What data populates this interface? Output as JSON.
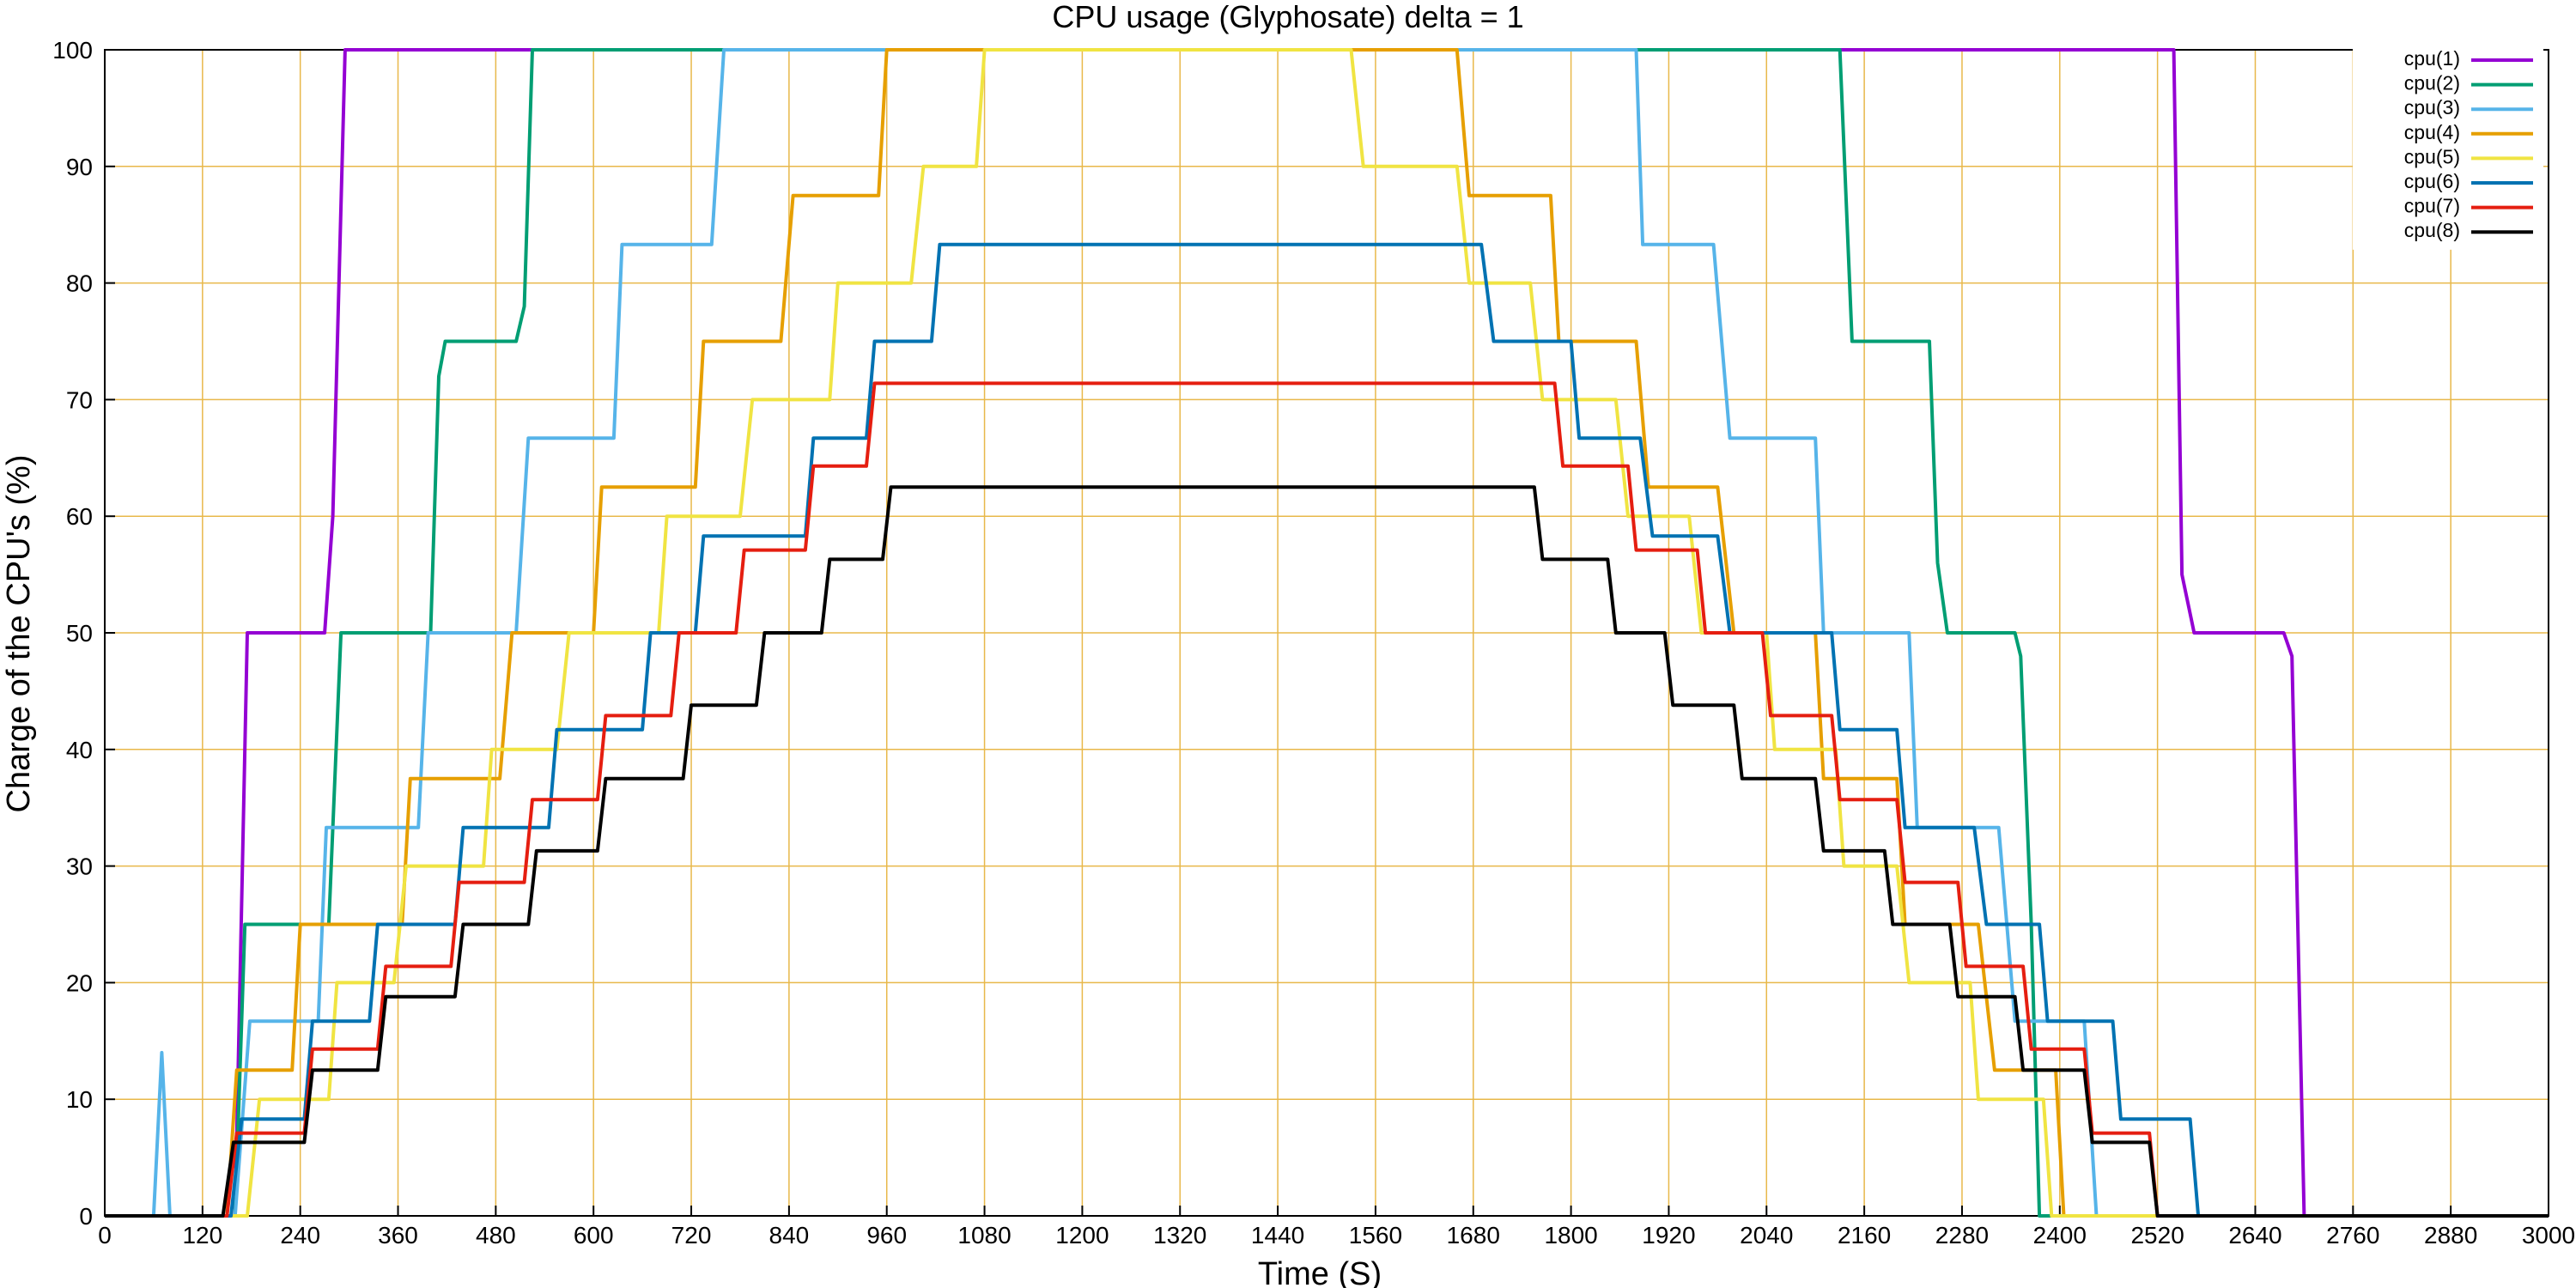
{
  "chart_data": {
    "type": "line",
    "title": "CPU usage (Glyphosate) delta = 1",
    "xlabel": "Time (S)",
    "ylabel": "Charge of the CPU's (%)",
    "xlim": [
      0,
      3000
    ],
    "ylim": [
      0,
      100
    ],
    "xticks": [
      "0",
      "120",
      "240",
      "360",
      "480",
      "600",
      "720",
      "840",
      "960",
      "1080",
      "1200",
      "1320",
      "1440",
      "1560",
      "1680",
      "1800",
      "1920",
      "2040",
      "2160",
      "2280",
      "2400",
      "2520",
      "2640",
      "2760",
      "2880",
      "3000"
    ],
    "yticks": [
      "0",
      "10",
      "20",
      "30",
      "40",
      "50",
      "60",
      "70",
      "80",
      "90",
      "100"
    ],
    "grid": true,
    "legend_position": "top-right",
    "series": [
      {
        "name": "cpu(1)",
        "color": "#9400d3",
        "points": [
          [
            0,
            0
          ],
          [
            160,
            0
          ],
          [
            175,
            50
          ],
          [
            270,
            50
          ],
          [
            280,
            60
          ],
          [
            295,
            100
          ],
          [
            2540,
            100
          ],
          [
            2550,
            55
          ],
          [
            2565,
            50
          ],
          [
            2675,
            50
          ],
          [
            2685,
            48
          ],
          [
            2700,
            0
          ],
          [
            3000,
            0
          ]
        ]
      },
      {
        "name": "cpu(2)",
        "color": "#009e73",
        "points": [
          [
            0,
            0
          ],
          [
            160,
            0
          ],
          [
            172,
            25
          ],
          [
            275,
            25
          ],
          [
            290,
            50
          ],
          [
            400,
            50
          ],
          [
            410,
            72
          ],
          [
            418,
            75
          ],
          [
            505,
            75
          ],
          [
            515,
            78
          ],
          [
            525,
            100
          ],
          [
            2130,
            100
          ],
          [
            2145,
            75
          ],
          [
            2240,
            75
          ],
          [
            2250,
            56
          ],
          [
            2262,
            50
          ],
          [
            2345,
            50
          ],
          [
            2352,
            48
          ],
          [
            2365,
            25
          ],
          [
            2375,
            0
          ],
          [
            3000,
            0
          ]
        ]
      },
      {
        "name": "cpu(3)",
        "color": "#56b4e9",
        "points": [
          [
            0,
            0
          ],
          [
            60,
            0
          ],
          [
            70,
            14
          ],
          [
            80,
            0
          ],
          [
            160,
            0
          ],
          [
            178,
            16.7
          ],
          [
            262,
            16.7
          ],
          [
            272,
            33.3
          ],
          [
            385,
            33.3
          ],
          [
            397,
            50
          ],
          [
            505,
            50
          ],
          [
            520,
            66.7
          ],
          [
            625,
            66.7
          ],
          [
            635,
            83.3
          ],
          [
            745,
            83.3
          ],
          [
            760,
            100
          ],
          [
            1880,
            100
          ],
          [
            1888,
            83.3
          ],
          [
            1975,
            83.3
          ],
          [
            1995,
            66.7
          ],
          [
            2100,
            66.7
          ],
          [
            2110,
            50
          ],
          [
            2215,
            50
          ],
          [
            2225,
            33.3
          ],
          [
            2325,
            33.3
          ],
          [
            2345,
            16.7
          ],
          [
            2430,
            16.7
          ],
          [
            2445,
            0
          ],
          [
            3000,
            0
          ]
        ]
      },
      {
        "name": "cpu(4)",
        "color": "#e69f00",
        "points": [
          [
            0,
            0
          ],
          [
            150,
            0
          ],
          [
            162,
            12.5
          ],
          [
            230,
            12.5
          ],
          [
            240,
            25
          ],
          [
            365,
            25
          ],
          [
            375,
            37.5
          ],
          [
            485,
            37.5
          ],
          [
            500,
            50
          ],
          [
            600,
            50
          ],
          [
            610,
            62.5
          ],
          [
            725,
            62.5
          ],
          [
            735,
            75
          ],
          [
            830,
            75
          ],
          [
            845,
            87.5
          ],
          [
            950,
            87.5
          ],
          [
            960,
            100
          ],
          [
            1660,
            100
          ],
          [
            1675,
            87.5
          ],
          [
            1775,
            87.5
          ],
          [
            1785,
            75
          ],
          [
            1880,
            75
          ],
          [
            1895,
            62.5
          ],
          [
            1980,
            62.5
          ],
          [
            2000,
            50
          ],
          [
            2100,
            50
          ],
          [
            2110,
            37.5
          ],
          [
            2200,
            37.5
          ],
          [
            2210,
            25
          ],
          [
            2300,
            25
          ],
          [
            2320,
            12.5
          ],
          [
            2395,
            12.5
          ],
          [
            2405,
            0
          ],
          [
            3000,
            0
          ]
        ]
      },
      {
        "name": "cpu(5)",
        "color": "#f0e442",
        "points": [
          [
            0,
            0
          ],
          [
            175,
            0
          ],
          [
            190,
            10
          ],
          [
            275,
            10
          ],
          [
            285,
            20
          ],
          [
            355,
            20
          ],
          [
            370,
            30
          ],
          [
            465,
            30
          ],
          [
            475,
            40
          ],
          [
            555,
            40
          ],
          [
            570,
            50
          ],
          [
            680,
            50
          ],
          [
            690,
            60
          ],
          [
            780,
            60
          ],
          [
            795,
            70
          ],
          [
            890,
            70
          ],
          [
            900,
            80
          ],
          [
            990,
            80
          ],
          [
            1005,
            90
          ],
          [
            1070,
            90
          ],
          [
            1080,
            100
          ],
          [
            1530,
            100
          ],
          [
            1545,
            90
          ],
          [
            1660,
            90
          ],
          [
            1675,
            80
          ],
          [
            1750,
            80
          ],
          [
            1765,
            70
          ],
          [
            1855,
            70
          ],
          [
            1870,
            60
          ],
          [
            1945,
            60
          ],
          [
            1960,
            50
          ],
          [
            2040,
            50
          ],
          [
            2050,
            40
          ],
          [
            2125,
            40
          ],
          [
            2135,
            30
          ],
          [
            2200,
            30
          ],
          [
            2215,
            20
          ],
          [
            2290,
            20
          ],
          [
            2300,
            10
          ],
          [
            2380,
            10
          ],
          [
            2390,
            0
          ],
          [
            3000,
            0
          ]
        ]
      },
      {
        "name": "cpu(6)",
        "color": "#0072b2",
        "points": [
          [
            0,
            0
          ],
          [
            155,
            0
          ],
          [
            168,
            8.3
          ],
          [
            245,
            8.3
          ],
          [
            255,
            16.7
          ],
          [
            325,
            16.7
          ],
          [
            335,
            25
          ],
          [
            430,
            25
          ],
          [
            440,
            33.3
          ],
          [
            545,
            33.3
          ],
          [
            555,
            41.7
          ],
          [
            660,
            41.7
          ],
          [
            670,
            50
          ],
          [
            725,
            50
          ],
          [
            735,
            58.3
          ],
          [
            860,
            58.3
          ],
          [
            870,
            66.7
          ],
          [
            935,
            66.7
          ],
          [
            945,
            75
          ],
          [
            1015,
            75
          ],
          [
            1025,
            83.3
          ],
          [
            1690,
            83.3
          ],
          [
            1705,
            75
          ],
          [
            1800,
            75
          ],
          [
            1810,
            66.7
          ],
          [
            1885,
            66.7
          ],
          [
            1900,
            58.3
          ],
          [
            1980,
            58.3
          ],
          [
            1995,
            50
          ],
          [
            2120,
            50
          ],
          [
            2130,
            41.7
          ],
          [
            2200,
            41.7
          ],
          [
            2210,
            33.3
          ],
          [
            2295,
            33.3
          ],
          [
            2310,
            25
          ],
          [
            2375,
            25
          ],
          [
            2385,
            16.7
          ],
          [
            2465,
            16.7
          ],
          [
            2475,
            8.3
          ],
          [
            2560,
            8.3
          ],
          [
            2570,
            0
          ],
          [
            3000,
            0
          ]
        ]
      },
      {
        "name": "cpu(7)",
        "color": "#e51e10",
        "points": [
          [
            0,
            0
          ],
          [
            150,
            0
          ],
          [
            162,
            7.1
          ],
          [
            245,
            7.1
          ],
          [
            255,
            14.3
          ],
          [
            335,
            14.3
          ],
          [
            345,
            21.4
          ],
          [
            425,
            21.4
          ],
          [
            435,
            28.6
          ],
          [
            515,
            28.6
          ],
          [
            525,
            35.7
          ],
          [
            605,
            35.7
          ],
          [
            615,
            42.9
          ],
          [
            695,
            42.9
          ],
          [
            705,
            50
          ],
          [
            775,
            50
          ],
          [
            785,
            57.1
          ],
          [
            860,
            57.1
          ],
          [
            870,
            64.3
          ],
          [
            935,
            64.3
          ],
          [
            945,
            71.4
          ],
          [
            1780,
            71.4
          ],
          [
            1790,
            64.3
          ],
          [
            1870,
            64.3
          ],
          [
            1880,
            57.1
          ],
          [
            1955,
            57.1
          ],
          [
            1965,
            50
          ],
          [
            2035,
            50
          ],
          [
            2045,
            42.9
          ],
          [
            2120,
            42.9
          ],
          [
            2130,
            35.7
          ],
          [
            2200,
            35.7
          ],
          [
            2210,
            28.6
          ],
          [
            2275,
            28.6
          ],
          [
            2285,
            21.4
          ],
          [
            2355,
            21.4
          ],
          [
            2365,
            14.3
          ],
          [
            2430,
            14.3
          ],
          [
            2440,
            7.1
          ],
          [
            2510,
            7.1
          ],
          [
            2520,
            0
          ],
          [
            3000,
            0
          ]
        ]
      },
      {
        "name": "cpu(8)",
        "color": "#000000",
        "points": [
          [
            0,
            0
          ],
          [
            145,
            0
          ],
          [
            158,
            6.3
          ],
          [
            245,
            6.3
          ],
          [
            255,
            12.5
          ],
          [
            335,
            12.5
          ],
          [
            345,
            18.8
          ],
          [
            430,
            18.8
          ],
          [
            440,
            25
          ],
          [
            520,
            25
          ],
          [
            530,
            31.3
          ],
          [
            605,
            31.3
          ],
          [
            615,
            37.5
          ],
          [
            710,
            37.5
          ],
          [
            720,
            43.8
          ],
          [
            800,
            43.8
          ],
          [
            810,
            50
          ],
          [
            880,
            50
          ],
          [
            890,
            56.3
          ],
          [
            955,
            56.3
          ],
          [
            965,
            62.5
          ],
          [
            1755,
            62.5
          ],
          [
            1765,
            56.3
          ],
          [
            1845,
            56.3
          ],
          [
            1855,
            50
          ],
          [
            1915,
            50
          ],
          [
            1925,
            43.8
          ],
          [
            2000,
            43.8
          ],
          [
            2010,
            37.5
          ],
          [
            2100,
            37.5
          ],
          [
            2110,
            31.3
          ],
          [
            2185,
            31.3
          ],
          [
            2195,
            25
          ],
          [
            2265,
            25
          ],
          [
            2275,
            18.8
          ],
          [
            2345,
            18.8
          ],
          [
            2355,
            12.5
          ],
          [
            2430,
            12.5
          ],
          [
            2440,
            6.3
          ],
          [
            2510,
            6.3
          ],
          [
            2520,
            0
          ],
          [
            3000,
            0
          ]
        ]
      }
    ]
  }
}
